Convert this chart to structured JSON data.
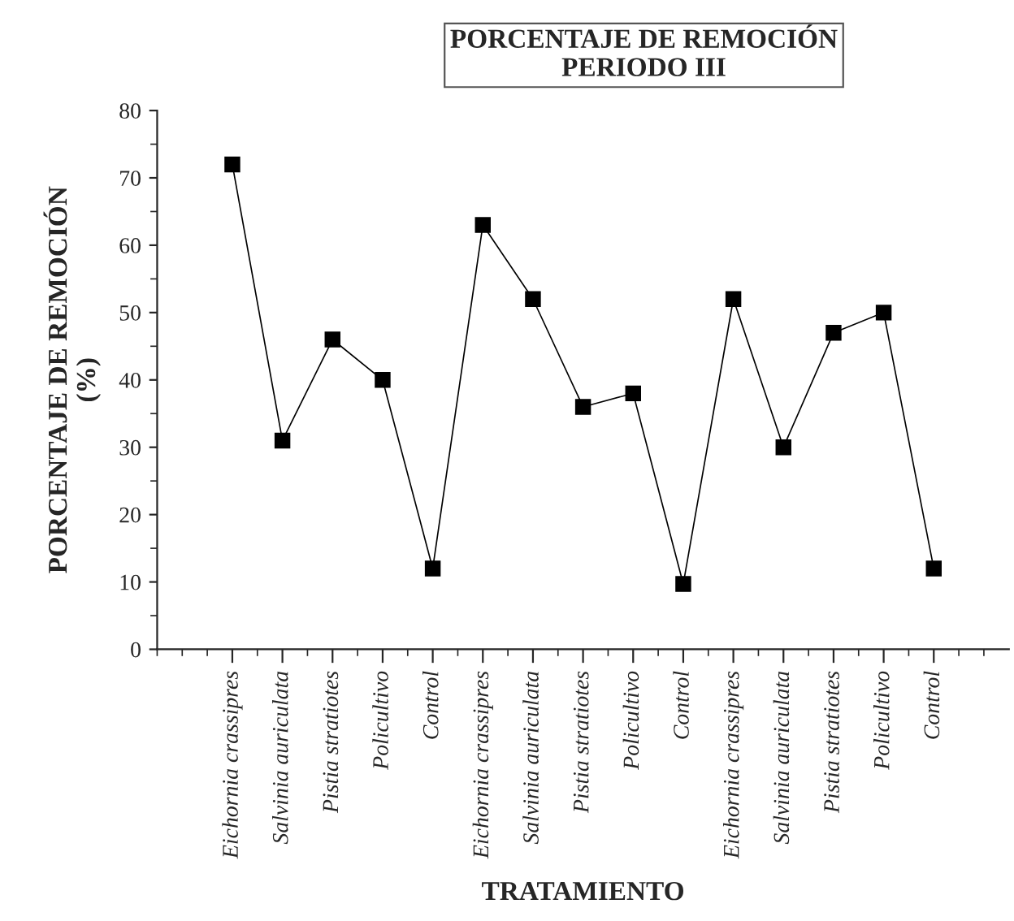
{
  "chart_data": {
    "type": "line",
    "title": "PORCENTAJE DE REMOCIÓN\nPERIODO III",
    "xlabel": "TRATAMIENTO",
    "ylabel": "PORCENTAJE DE REMOCIÓN\n(%)",
    "categories": [
      "Eichornia crassipres",
      "Salvinia auriculata",
      "Pistia stratiotes",
      "Policultivo",
      "Control",
      "Eichornia crassipres",
      "Salvinia auriculata",
      "Pistia stratiotes",
      "Policultivo",
      "Control",
      "Eichornia crassipres",
      "Salvinia auriculata",
      "Pistia stratiotes",
      "Policultivo",
      "Control"
    ],
    "series": [
      {
        "color": "#000000",
        "values": [
          72,
          31,
          46,
          40,
          12,
          63,
          52,
          36,
          38,
          9.7,
          52,
          30,
          47,
          50,
          12
        ]
      }
    ],
    "ylim": [
      0,
      80
    ],
    "yticks": [
      0,
      10,
      20,
      30,
      40,
      50,
      60,
      70,
      80
    ],
    "marker": "square",
    "line_style": "solid"
  }
}
